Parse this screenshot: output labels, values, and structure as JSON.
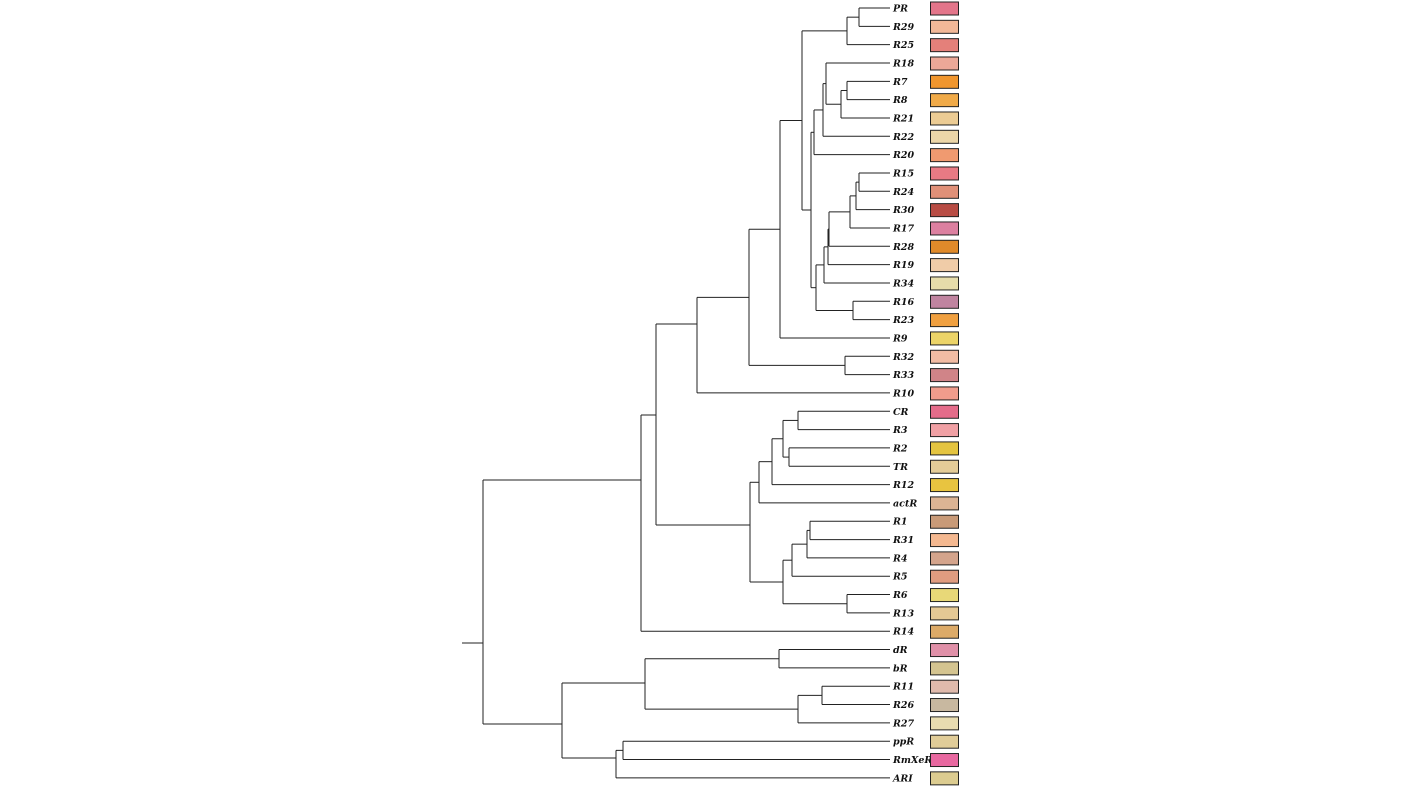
{
  "leaves": [
    {
      "label": "PR",
      "color": "#e3758a"
    },
    {
      "label": "R29",
      "color": "#f2b898"
    },
    {
      "label": "R25",
      "color": "#e4807a"
    },
    {
      "label": "R18",
      "color": "#eca898"
    },
    {
      "label": "R7",
      "color": "#f0962e"
    },
    {
      "label": "R8",
      "color": "#f0aa48"
    },
    {
      "label": "R21",
      "color": "#eccc94"
    },
    {
      "label": "R22",
      "color": "#ecd6a8"
    },
    {
      "label": "R20",
      "color": "#f09a70"
    },
    {
      "label": "R15",
      "color": "#e87a84"
    },
    {
      "label": "R24",
      "color": "#e09078"
    },
    {
      "label": "R30",
      "color": "#b84c44"
    },
    {
      "label": "R17",
      "color": "#dc80a0"
    },
    {
      "label": "R28",
      "color": "#e08a2a"
    },
    {
      "label": "R19",
      "color": "#f0cca8"
    },
    {
      "label": "R34",
      "color": "#e6dcaa"
    },
    {
      "label": "R16",
      "color": "#c084a0"
    },
    {
      "label": "R23",
      "color": "#f0a040"
    },
    {
      "label": "R9",
      "color": "#ecd468"
    },
    {
      "label": "R32",
      "color": "#f2bca4"
    },
    {
      "label": "R33",
      "color": "#d08488"
    },
    {
      "label": "R10",
      "color": "#f09c8c"
    },
    {
      "label": "CR",
      "color": "#e46c8a"
    },
    {
      "label": "R3",
      "color": "#f0a0a4"
    },
    {
      "label": "R2",
      "color": "#e4c440"
    },
    {
      "label": "TR",
      "color": "#e4cc98"
    },
    {
      "label": "R12",
      "color": "#e8c440"
    },
    {
      "label": "actR",
      "color": "#dcb494"
    },
    {
      "label": "R1",
      "color": "#c89a78"
    },
    {
      "label": "R31",
      "color": "#f4b890"
    },
    {
      "label": "R4",
      "color": "#d4a48c"
    },
    {
      "label": "R5",
      "color": "#e09c80"
    },
    {
      "label": "R6",
      "color": "#e8d878"
    },
    {
      "label": "R13",
      "color": "#e4c894"
    },
    {
      "label": "R14",
      "color": "#dcaa68"
    },
    {
      "label": "dR",
      "color": "#e090a8"
    },
    {
      "label": "bR",
      "color": "#d4c490"
    },
    {
      "label": "R11",
      "color": "#e0baac"
    },
    {
      "label": "R26",
      "color": "#c8b8a0"
    },
    {
      "label": "R27",
      "color": "#e8dcb0"
    },
    {
      "label": "ppR",
      "color": "#e0cc98"
    },
    {
      "label": "RmXeR",
      "color": "#e868a0"
    },
    {
      "label": "ARI",
      "color": "#dccc90"
    }
  ]
}
